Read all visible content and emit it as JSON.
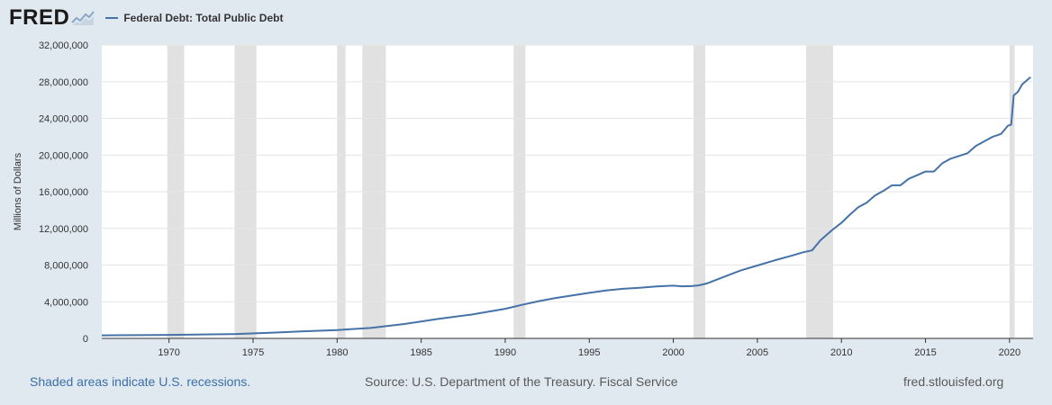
{
  "header": {
    "logo_text": "FRED",
    "logo_icon": "chart-line-icon",
    "legend_label": "Federal Debt: Total Public Debt",
    "series_color": "#4572a7"
  },
  "footer": {
    "recession_note": "Shaded areas indicate U.S. recessions.",
    "source": "Source: U.S. Department of the Treasury. Fiscal Service",
    "site": "fred.stlouisfed.org"
  },
  "chart_data": {
    "type": "line",
    "ylabel": "Millions of Dollars",
    "xlabel": "",
    "xlim": [
      1966.0,
      2021.4
    ],
    "ylim": [
      0,
      32000000
    ],
    "yticks": [
      0,
      4000000,
      8000000,
      12000000,
      16000000,
      20000000,
      24000000,
      28000000,
      32000000
    ],
    "ytick_labels": [
      "0",
      "4,000,000",
      "8,000,000",
      "12,000,000",
      "16,000,000",
      "20,000,000",
      "24,000,000",
      "28,000,000",
      "32,000,000"
    ],
    "xticks": [
      1970,
      1975,
      1980,
      1985,
      1990,
      1995,
      2000,
      2005,
      2010,
      2015,
      2020
    ],
    "xtick_labels": [
      "1970",
      "1975",
      "1980",
      "1985",
      "1990",
      "1995",
      "2000",
      "2005",
      "2010",
      "2015",
      "2020"
    ],
    "recessions": [
      [
        1969.9,
        1970.9
      ],
      [
        1973.9,
        1975.2
      ],
      [
        1980.0,
        1980.5
      ],
      [
        1981.5,
        1982.9
      ],
      [
        1990.5,
        1991.2
      ],
      [
        2001.2,
        2001.9
      ],
      [
        2007.9,
        2009.5
      ],
      [
        2020.0,
        2020.3
      ]
    ],
    "series": [
      {
        "name": "Federal Debt: Total Public Debt",
        "x": [
          1966.0,
          1968.0,
          1970.0,
          1972.0,
          1974.0,
          1976.0,
          1978.0,
          1980.0,
          1982.0,
          1984.0,
          1986.0,
          1988.0,
          1990.0,
          1991.0,
          1992.0,
          1993.0,
          1994.0,
          1995.0,
          1996.0,
          1997.0,
          1998.0,
          1999.0,
          2000.0,
          2000.5,
          2001.0,
          2001.5,
          2002.0,
          2003.0,
          2004.0,
          2005.0,
          2006.0,
          2007.0,
          2007.75,
          2008.25,
          2008.75,
          2009.0,
          2009.5,
          2010.0,
          2010.5,
          2011.0,
          2011.5,
          2012.0,
          2012.5,
          2013.0,
          2013.5,
          2014.0,
          2014.5,
          2015.0,
          2015.5,
          2016.0,
          2016.5,
          2017.0,
          2017.5,
          2018.0,
          2018.5,
          2019.0,
          2019.5,
          2019.9,
          2020.1,
          2020.25,
          2020.5,
          2020.75,
          2021.0,
          2021.25
        ],
        "y": [
          330000,
          350000,
          380000,
          430000,
          480000,
          620000,
          780000,
          910000,
          1140000,
          1570000,
          2120000,
          2600000,
          3230000,
          3660000,
          4060000,
          4410000,
          4690000,
          4970000,
          5220000,
          5410000,
          5530000,
          5660000,
          5750000,
          5680000,
          5690000,
          5780000,
          6000000,
          6700000,
          7400000,
          7950000,
          8500000,
          9000000,
          9400000,
          9600000,
          10700000,
          11100000,
          11900000,
          12600000,
          13500000,
          14300000,
          14800000,
          15600000,
          16100000,
          16700000,
          16700000,
          17400000,
          17800000,
          18200000,
          18200000,
          19100000,
          19600000,
          19900000,
          20200000,
          21000000,
          21500000,
          22000000,
          22300000,
          23200000,
          23300000,
          26500000,
          26900000,
          27700000,
          28100000,
          28500000
        ]
      }
    ]
  }
}
